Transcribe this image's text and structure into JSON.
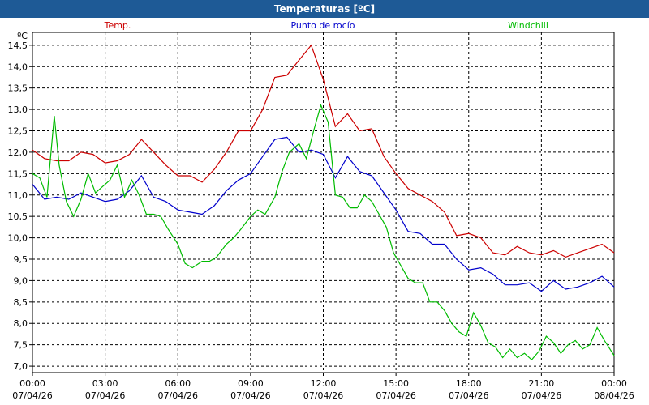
{
  "window": {
    "title": "Temperaturas [ºC]"
  },
  "chart_data": {
    "type": "line",
    "title": "Temperaturas [ºC]",
    "ylabel": "ºC",
    "xlabel": "",
    "ylim": [
      6.85,
      14.8
    ],
    "y_ticks": [
      "7,0",
      "7,5",
      "8,0",
      "8,5",
      "9,0",
      "9,5",
      "10,0",
      "10,5",
      "11,0",
      "11,5",
      "12,0",
      "12,5",
      "13,0",
      "13,5",
      "14,0",
      "14,5"
    ],
    "y_tick_values": [
      7.0,
      7.5,
      8.0,
      8.5,
      9.0,
      9.5,
      10.0,
      10.5,
      11.0,
      11.5,
      12.0,
      12.5,
      13.0,
      13.5,
      14.0,
      14.5
    ],
    "x_range_hours": [
      0,
      24
    ],
    "x_ticks": [
      {
        "hour": 0,
        "time": "00:00",
        "date": "07/04/26"
      },
      {
        "hour": 3,
        "time": "03:00",
        "date": "07/04/26"
      },
      {
        "hour": 6,
        "time": "06:00",
        "date": "07/04/26"
      },
      {
        "hour": 9,
        "time": "09:00",
        "date": "07/04/26"
      },
      {
        "hour": 12,
        "time": "12:00",
        "date": "07/04/26"
      },
      {
        "hour": 15,
        "time": "15:00",
        "date": "07/04/26"
      },
      {
        "hour": 18,
        "time": "18:00",
        "date": "07/04/26"
      },
      {
        "hour": 21,
        "time": "21:00",
        "date": "07/04/26"
      },
      {
        "hour": 24,
        "time": "00:00",
        "date": "08/04/26"
      }
    ],
    "grid": true,
    "legend_placement": "top",
    "series": [
      {
        "name": "Temp.",
        "color": "#CC0000",
        "x": [
          0,
          0.5,
          1,
          1.5,
          2,
          2.5,
          3,
          3.5,
          4,
          4.5,
          5,
          5.5,
          6,
          6.5,
          7,
          7.5,
          8,
          8.5,
          9,
          9.5,
          10,
          10.5,
          11,
          11.5,
          12,
          12.5,
          13,
          13.5,
          14,
          14.5,
          15,
          15.5,
          16,
          16.5,
          17,
          17.5,
          18,
          18.5,
          19,
          19.5,
          20,
          20.5,
          21,
          21.5,
          22,
          22.5,
          23,
          23.5,
          24
        ],
        "y": [
          12.05,
          11.85,
          11.8,
          11.8,
          12.0,
          11.95,
          11.75,
          11.8,
          11.95,
          12.3,
          12.0,
          11.7,
          11.45,
          11.45,
          11.3,
          11.6,
          12.0,
          12.5,
          12.5,
          13.0,
          13.75,
          13.8,
          14.15,
          14.5,
          13.7,
          12.6,
          12.9,
          12.5,
          12.55,
          11.9,
          11.5,
          11.15,
          11.0,
          10.85,
          10.6,
          10.05,
          10.1,
          10.0,
          9.65,
          9.6,
          9.8,
          9.65,
          9.6,
          9.7,
          9.55,
          9.65,
          9.75,
          9.85,
          9.65
        ]
      },
      {
        "name": "Punto de rocío",
        "color": "#0000CC",
        "x": [
          0,
          0.5,
          1,
          1.5,
          2,
          2.5,
          3,
          3.5,
          4,
          4.5,
          5,
          5.5,
          6,
          6.5,
          7,
          7.5,
          8,
          8.5,
          9,
          9.5,
          10,
          10.5,
          11,
          11.5,
          12,
          12.5,
          13,
          13.5,
          14,
          14.5,
          15,
          15.5,
          16,
          16.5,
          17,
          17.5,
          18,
          18.5,
          19,
          19.5,
          20,
          20.5,
          21,
          21.5,
          22,
          22.5,
          23,
          23.5,
          24
        ],
        "y": [
          11.25,
          10.9,
          10.95,
          10.9,
          11.05,
          10.95,
          10.85,
          10.9,
          11.1,
          11.45,
          10.95,
          10.85,
          10.65,
          10.6,
          10.55,
          10.75,
          11.1,
          11.35,
          11.5,
          11.9,
          12.3,
          12.35,
          12.0,
          12.05,
          11.95,
          11.4,
          11.9,
          11.55,
          11.45,
          11.05,
          10.65,
          10.15,
          10.1,
          9.85,
          9.85,
          9.5,
          9.25,
          9.3,
          9.15,
          8.9,
          8.9,
          8.95,
          8.75,
          9.0,
          8.8,
          8.85,
          8.95,
          9.1,
          8.85
        ]
      },
      {
        "name": "Windchill",
        "color": "#00BB00",
        "x": [
          0,
          0.3,
          0.6,
          0.9,
          1.1,
          1.4,
          1.7,
          2.0,
          2.3,
          2.6,
          2.9,
          3.2,
          3.5,
          3.8,
          4.1,
          4.4,
          4.7,
          5.0,
          5.3,
          5.6,
          6.0,
          6.3,
          6.6,
          7.0,
          7.3,
          7.6,
          8.0,
          8.3,
          8.6,
          9.0,
          9.3,
          9.6,
          10.0,
          10.3,
          10.6,
          11.0,
          11.3,
          11.6,
          11.9,
          12.2,
          12.5,
          12.8,
          13.1,
          13.4,
          13.7,
          14.0,
          14.3,
          14.6,
          14.9,
          15.2,
          15.5,
          15.8,
          16.1,
          16.4,
          16.7,
          17.0,
          17.3,
          17.6,
          17.9,
          18.2,
          18.5,
          18.8,
          19.1,
          19.4,
          19.7,
          20.0,
          20.3,
          20.6,
          20.9,
          21.2,
          21.5,
          21.8,
          22.1,
          22.4,
          22.7,
          23.0,
          23.3,
          23.6,
          24.0
        ],
        "y": [
          11.5,
          11.4,
          10.95,
          12.85,
          11.7,
          10.85,
          10.5,
          10.9,
          11.5,
          11.05,
          11.2,
          11.35,
          11.7,
          10.95,
          11.35,
          11.0,
          10.55,
          10.55,
          10.5,
          10.2,
          9.85,
          9.4,
          9.3,
          9.45,
          9.45,
          9.55,
          9.85,
          10.0,
          10.2,
          10.5,
          10.65,
          10.55,
          10.95,
          11.55,
          12.0,
          12.2,
          11.85,
          12.5,
          13.1,
          12.7,
          11.0,
          10.95,
          10.7,
          10.7,
          11.0,
          10.85,
          10.55,
          10.25,
          9.65,
          9.35,
          9.05,
          8.95,
          8.95,
          8.5,
          8.5,
          8.3,
          8.0,
          7.8,
          7.7,
          8.25,
          7.95,
          7.55,
          7.45,
          7.2,
          7.4,
          7.2,
          7.3,
          7.15,
          7.35,
          7.7,
          7.55,
          7.3,
          7.5,
          7.6,
          7.4,
          7.5,
          7.9,
          7.6,
          7.25
        ]
      }
    ]
  }
}
